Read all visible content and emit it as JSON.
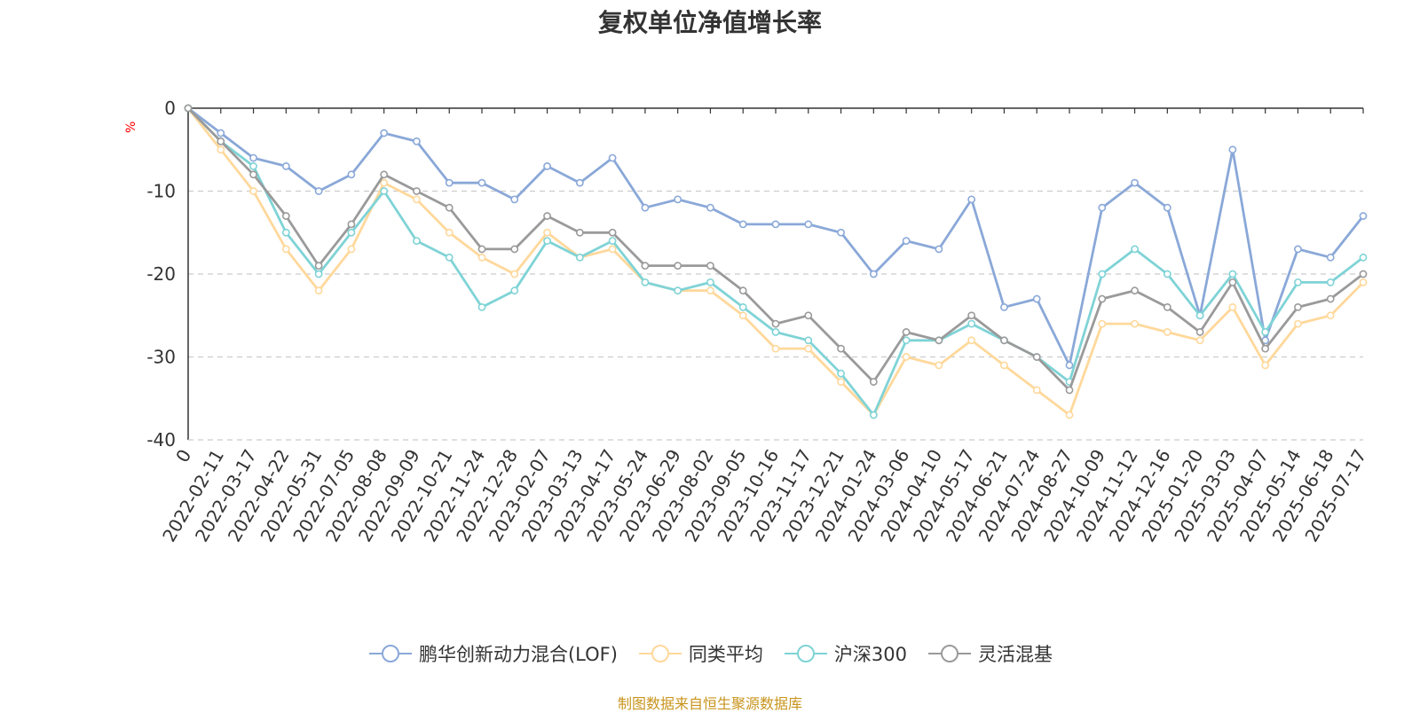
{
  "chart_data": {
    "type": "line",
    "title": "复权单位净值增长率",
    "ylabel": "%",
    "ylim": [
      -40,
      0
    ],
    "yticks": [
      0,
      -10,
      -20,
      -30,
      -40
    ],
    "grid": true,
    "legend_position": "bottom",
    "source_note": "制图数据来自恒生聚源数据库",
    "x_tick_labels": [
      "0",
      "2022-02-11",
      "2022-03-17",
      "2022-04-22",
      "2022-05-31",
      "2022-07-05",
      "2022-08-08",
      "2022-09-09",
      "2022-10-21",
      "2022-11-24",
      "2022-12-28",
      "2023-02-07",
      "2023-03-13",
      "2023-04-17",
      "2023-05-24",
      "2023-06-29",
      "2023-08-02",
      "2023-09-05",
      "2023-10-16",
      "2023-11-17",
      "2023-12-21",
      "2024-01-24",
      "2024-03-06",
      "2024-04-10",
      "2024-05-17",
      "2024-06-21",
      "2024-07-24",
      "2024-08-27",
      "2024-10-09",
      "2024-11-12",
      "2024-12-16",
      "2025-01-20",
      "2025-03-03",
      "2025-04-07",
      "2025-05-14",
      "2025-06-18",
      "2025-07-17"
    ],
    "x": [
      0,
      1,
      2,
      3,
      4,
      5,
      6,
      7,
      8,
      9,
      10,
      11,
      12,
      13,
      14,
      15,
      16,
      17,
      18,
      19,
      20,
      21,
      22,
      23,
      24,
      25,
      26,
      27,
      28,
      29,
      30,
      31,
      32,
      33,
      34,
      35,
      36
    ],
    "series": [
      {
        "name": "鹏华创新动力混合(LOF)",
        "color": "#8aa8d8",
        "values": [
          0,
          -3,
          -6,
          -7,
          -10,
          -8,
          -3,
          -4,
          -9,
          -9,
          -11,
          -7,
          -9,
          -6,
          -12,
          -11,
          -12,
          -14,
          -14,
          -14,
          -15,
          -20,
          -16,
          -17,
          -11,
          -24,
          -23,
          -31,
          -12,
          -9,
          -12,
          -25,
          -5,
          -28,
          -17,
          -18,
          -13
        ]
      },
      {
        "name": "同类平均",
        "color": "#ffd89b",
        "values": [
          0,
          -5,
          -10,
          -17,
          -22,
          -17,
          -9,
          -11,
          -15,
          -18,
          -20,
          -15,
          -18,
          -17,
          -21,
          -22,
          -22,
          -25,
          -29,
          -29,
          -33,
          -37,
          -30,
          -31,
          -28,
          -31,
          -34,
          -37,
          -26,
          -26,
          -27,
          -28,
          -24,
          -31,
          -26,
          -25,
          -21
        ]
      },
      {
        "name": "沪深300",
        "color": "#7fd3d6",
        "values": [
          0,
          -4,
          -7,
          -15,
          -20,
          -15,
          -10,
          -16,
          -18,
          -24,
          -22,
          -16,
          -18,
          -16,
          -21,
          -22,
          -21,
          -24,
          -27,
          -28,
          -32,
          -37,
          -28,
          -28,
          -26,
          -28,
          -30,
          -33,
          -20,
          -17,
          -20,
          -25,
          -20,
          -27,
          -21,
          -21,
          -18
        ]
      },
      {
        "name": "灵活混基",
        "color": "#9a9a9a",
        "values": [
          0,
          -4,
          -8,
          -13,
          -19,
          -14,
          -8,
          -10,
          -12,
          -17,
          -17,
          -13,
          -15,
          -15,
          -19,
          -19,
          -19,
          -22,
          -26,
          -25,
          -29,
          -33,
          -27,
          -28,
          -25,
          -28,
          -30,
          -34,
          -23,
          -22,
          -24,
          -27,
          -21,
          -29,
          -24,
          -23,
          -20
        ]
      }
    ]
  }
}
